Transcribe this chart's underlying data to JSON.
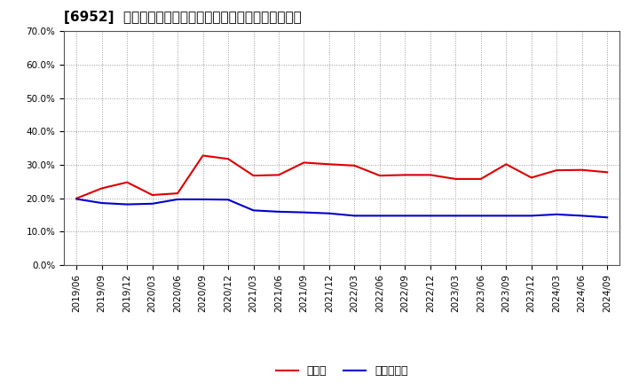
{
  "title": "[6952]  現預金、有利子負債の総資産に対する比率の推移",
  "x_labels": [
    "2019/06",
    "2019/09",
    "2019/12",
    "2020/03",
    "2020/06",
    "2020/09",
    "2020/12",
    "2021/03",
    "2021/06",
    "2021/09",
    "2021/12",
    "2022/03",
    "2022/06",
    "2022/09",
    "2022/12",
    "2023/03",
    "2023/06",
    "2023/09",
    "2023/12",
    "2024/03",
    "2024/06",
    "2024/09"
  ],
  "cash_values": [
    0.2,
    0.23,
    0.248,
    0.21,
    0.215,
    0.328,
    0.318,
    0.268,
    0.27,
    0.307,
    0.302,
    0.298,
    0.268,
    0.27,
    0.27,
    0.258,
    0.258,
    0.302,
    0.262,
    0.284,
    0.285,
    0.278
  ],
  "debt_values": [
    0.198,
    0.186,
    0.182,
    0.184,
    0.197,
    0.197,
    0.196,
    0.164,
    0.16,
    0.158,
    0.155,
    0.148,
    0.148,
    0.148,
    0.148,
    0.148,
    0.148,
    0.148,
    0.148,
    0.152,
    0.148,
    0.143
  ],
  "cash_color": "#dd0000",
  "debt_color": "#0000cc",
  "cash_label": "現預金",
  "debt_label": "有利子負債",
  "ylim": [
    0.0,
    0.7
  ],
  "yticks": [
    0.0,
    0.1,
    0.2,
    0.3,
    0.4,
    0.5,
    0.6,
    0.7
  ],
  "background_color": "#ffffff",
  "grid_color": "#999999",
  "title_fontsize": 11,
  "tick_fontsize": 7.5,
  "legend_fontsize": 9,
  "line_width": 1.5
}
